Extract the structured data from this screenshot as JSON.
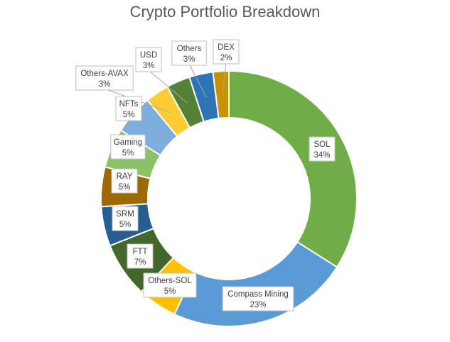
{
  "chart_data": {
    "type": "pie",
    "variant": "doughnut",
    "title": "Crypto Portfolio Breakdown",
    "slices": [
      {
        "name": "SOL",
        "label": "34%",
        "value": 34,
        "color": "#70AD47"
      },
      {
        "name": "Compass Mining",
        "label": "23%",
        "value": 23,
        "color": "#5B9BD5"
      },
      {
        "name": "Others-SOL",
        "label": "5%",
        "value": 5,
        "color": "#FFC000"
      },
      {
        "name": "FTT",
        "label": "7%",
        "value": 7,
        "color": "#43682B"
      },
      {
        "name": "SRM",
        "label": "5%",
        "value": 5,
        "color": "#255E91"
      },
      {
        "name": "RAY",
        "label": "5%",
        "value": 5,
        "color": "#9E6A00"
      },
      {
        "name": "Gaming",
        "label": "5%",
        "value": 5,
        "color": "#8CC168"
      },
      {
        "name": "NFTs",
        "label": "5%",
        "value": 5,
        "color": "#7CAFDD"
      },
      {
        "name": "Others-AVAX",
        "label": "3%",
        "value": 3,
        "color": "#FFCD33"
      },
      {
        "name": "USD",
        "label": "3%",
        "value": 3,
        "color": "#548235"
      },
      {
        "name": "Others",
        "label": "3%",
        "value": 3,
        "color": "#2E75B6"
      },
      {
        "name": "DEX",
        "label": "2%",
        "value": 2,
        "color": "#C99100"
      }
    ]
  }
}
